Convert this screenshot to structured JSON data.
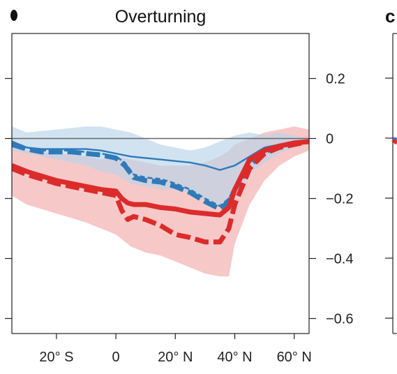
{
  "chart_data": {
    "type": "line",
    "title": "Overturning",
    "panel_letters": {
      "right": "c"
    },
    "xlabel": "",
    "ylabel": "",
    "xlim": [
      -35,
      65
    ],
    "ylim": [
      -0.65,
      0.35
    ],
    "x_ticks": [
      {
        "value": -20,
        "label": "20° S"
      },
      {
        "value": 0,
        "label": "0"
      },
      {
        "value": 20,
        "label": "20° N"
      },
      {
        "value": 40,
        "label": "40° N"
      },
      {
        "value": 60,
        "label": "60° N"
      }
    ],
    "y_ticks": [
      {
        "value": 0.2,
        "label": "0.2"
      },
      {
        "value": 0,
        "label": "0"
      },
      {
        "value": -0.2,
        "label": "−0.2"
      },
      {
        "value": -0.4,
        "label": "−0.4"
      },
      {
        "value": -0.6,
        "label": "−0.6"
      }
    ],
    "grid": false,
    "zero_line": true,
    "colors": {
      "blue": "#2f7ab8",
      "red": "#dc2b2b",
      "blue_band": "#b9d4ea",
      "red_band": "#f4b3b3"
    },
    "bands": [
      {
        "color": "red",
        "x": [
          -35,
          -30,
          -20,
          -10,
          -5,
          0,
          5,
          10,
          15,
          20,
          25,
          30,
          35,
          38,
          40,
          45,
          50,
          55,
          60,
          65
        ],
        "upper": [
          -0.02,
          -0.04,
          -0.05,
          -0.06,
          -0.07,
          -0.06,
          -0.07,
          -0.08,
          -0.09,
          -0.09,
          -0.09,
          -0.08,
          -0.06,
          -0.04,
          -0.02,
          0.0,
          0.02,
          0.03,
          0.04,
          0.03
        ],
        "lower": [
          -0.19,
          -0.22,
          -0.25,
          -0.28,
          -0.3,
          -0.32,
          -0.36,
          -0.38,
          -0.39,
          -0.41,
          -0.43,
          -0.45,
          -0.46,
          -0.46,
          -0.35,
          -0.22,
          -0.14,
          -0.09,
          -0.06,
          -0.04
        ]
      },
      {
        "color": "blue",
        "x": [
          -35,
          -30,
          -20,
          -10,
          -5,
          0,
          5,
          10,
          15,
          20,
          25,
          30,
          35,
          40,
          45,
          50,
          55,
          60,
          65
        ],
        "upper": [
          0.04,
          0.02,
          0.03,
          0.04,
          0.04,
          0.03,
          0.02,
          0.0,
          -0.02,
          -0.03,
          -0.04,
          -0.03,
          -0.01,
          0.01,
          0.02,
          0.01,
          0.02,
          0.01,
          0.0
        ],
        "lower": [
          -0.04,
          -0.05,
          -0.07,
          -0.09,
          -0.11,
          -0.12,
          -0.15,
          -0.16,
          -0.17,
          -0.17,
          -0.18,
          -0.21,
          -0.22,
          -0.19,
          -0.12,
          -0.08,
          -0.05,
          -0.03,
          -0.01
        ]
      }
    ],
    "series": [
      {
        "color": "blue",
        "style": "thin",
        "x": [
          -35,
          -30,
          -25,
          -20,
          -15,
          -10,
          -5,
          0,
          5,
          10,
          15,
          20,
          25,
          30,
          35,
          40,
          45,
          50,
          55,
          60,
          65
        ],
        "values": [
          -0.01,
          -0.03,
          -0.035,
          -0.035,
          -0.035,
          -0.035,
          -0.04,
          -0.05,
          -0.06,
          -0.065,
          -0.07,
          -0.075,
          -0.08,
          -0.09,
          -0.105,
          -0.09,
          -0.06,
          -0.03,
          -0.02,
          -0.015,
          -0.01
        ]
      },
      {
        "color": "blue",
        "style": "dash",
        "x": [
          -35,
          -30,
          -25,
          -20,
          -15,
          -10,
          -5,
          0,
          3,
          6,
          10,
          15,
          20,
          25,
          30,
          35,
          38,
          40,
          45,
          50,
          55,
          60,
          65
        ],
        "values": [
          -0.01,
          -0.03,
          -0.04,
          -0.04,
          -0.04,
          -0.045,
          -0.05,
          -0.06,
          -0.08,
          -0.12,
          -0.13,
          -0.135,
          -0.15,
          -0.17,
          -0.2,
          -0.225,
          -0.2,
          -0.16,
          -0.08,
          -0.04,
          -0.02,
          -0.015,
          -0.01
        ]
      },
      {
        "color": "blue",
        "style": "thick-dash",
        "x": [
          -35,
          -30,
          -25,
          -20,
          -15,
          -10,
          -5,
          0,
          3,
          6,
          10,
          15,
          20,
          25,
          30,
          35,
          38,
          40,
          45,
          50,
          55,
          60,
          65
        ],
        "values": [
          -0.02,
          -0.035,
          -0.045,
          -0.045,
          -0.045,
          -0.05,
          -0.055,
          -0.065,
          -0.09,
          -0.13,
          -0.14,
          -0.145,
          -0.16,
          -0.18,
          -0.21,
          -0.235,
          -0.21,
          -0.17,
          -0.09,
          -0.045,
          -0.025,
          -0.015,
          -0.01
        ]
      },
      {
        "color": "red",
        "style": "thick",
        "x": [
          -35,
          -30,
          -25,
          -20,
          -15,
          -10,
          -5,
          0,
          2,
          4,
          6,
          10,
          15,
          20,
          25,
          30,
          35,
          38,
          40,
          45,
          50,
          55,
          60,
          65
        ],
        "values": [
          -0.09,
          -0.11,
          -0.125,
          -0.14,
          -0.15,
          -0.16,
          -0.17,
          -0.175,
          -0.2,
          -0.215,
          -0.22,
          -0.22,
          -0.23,
          -0.235,
          -0.245,
          -0.25,
          -0.255,
          -0.23,
          -0.17,
          -0.07,
          -0.04,
          -0.025,
          -0.015,
          -0.01
        ]
      },
      {
        "color": "red",
        "style": "thick-dash",
        "x": [
          -35,
          -30,
          -25,
          -20,
          -15,
          -10,
          -5,
          0,
          2,
          4,
          6,
          10,
          15,
          20,
          25,
          30,
          35,
          38,
          40,
          45,
          50,
          55,
          60,
          65
        ],
        "values": [
          -0.1,
          -0.12,
          -0.135,
          -0.15,
          -0.16,
          -0.17,
          -0.18,
          -0.19,
          -0.24,
          -0.27,
          -0.26,
          -0.27,
          -0.29,
          -0.32,
          -0.33,
          -0.345,
          -0.345,
          -0.3,
          -0.22,
          -0.1,
          -0.05,
          -0.03,
          -0.02,
          -0.01
        ]
      }
    ]
  }
}
